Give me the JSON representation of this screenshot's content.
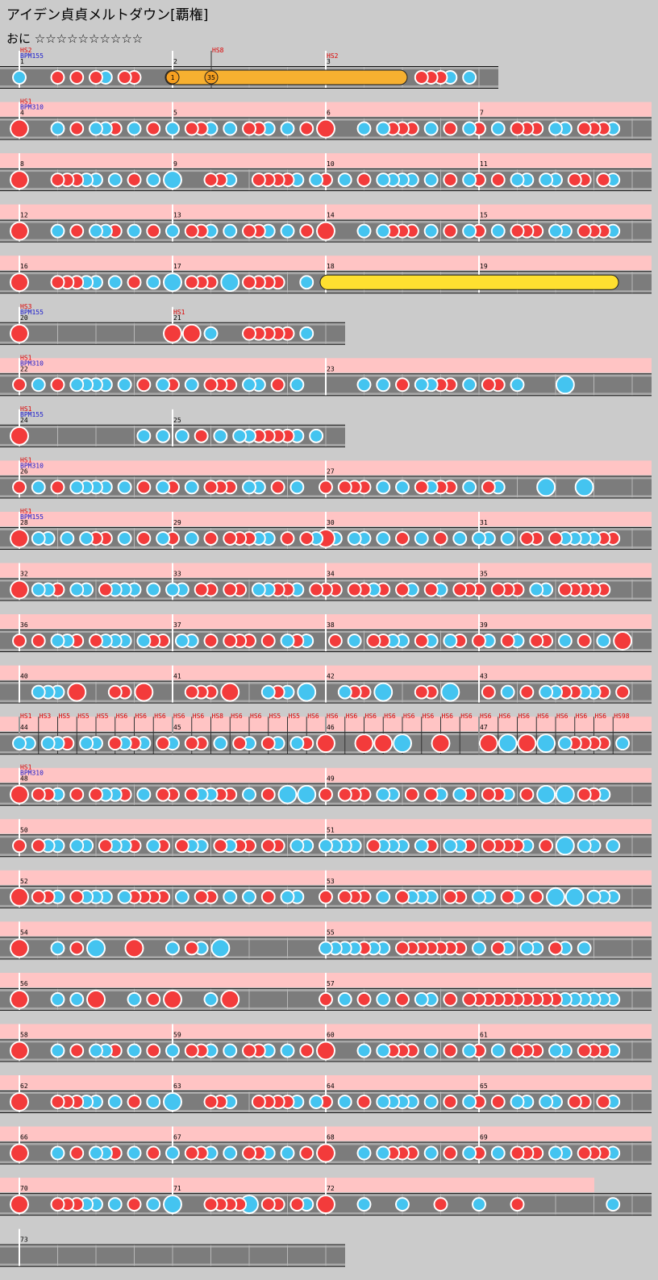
{
  "title": "アイデン貞貞メルトダウン[覇権]",
  "difficulty": "おに ☆☆☆☆☆☆☆☆☆☆",
  "rows": [
    {
      "measures": [
        {
          "number": "1",
          "scroll": "HS2",
          "bpm": "BPM155"
        },
        {
          "number": "2",
          "events": [
            "HS8"
          ],
          "balloons": [
            "1",
            "35"
          ]
        },
        {
          "number": "3",
          "scroll": "HS2"
        }
      ]
    },
    {
      "measures": [
        {
          "number": "4",
          "scroll": "HS1",
          "bpm": "BPM310"
        },
        {
          "number": "5"
        },
        {
          "number": "6"
        },
        {
          "number": "7"
        }
      ]
    },
    {
      "measures": [
        {
          "number": "8"
        },
        {
          "number": "9"
        },
        {
          "number": "10"
        },
        {
          "number": "11"
        }
      ]
    },
    {
      "measures": [
        {
          "number": "12"
        },
        {
          "number": "13"
        },
        {
          "number": "14"
        },
        {
          "number": "15"
        }
      ]
    },
    {
      "measures": [
        {
          "number": "16"
        },
        {
          "number": "17"
        },
        {
          "number": "18"
        },
        {
          "number": "19"
        }
      ]
    },
    {
      "measures": [
        {
          "number": "20",
          "scroll": "HS3",
          "bpm": "BPM155"
        },
        {
          "number": "21",
          "scroll": "HS1"
        }
      ]
    },
    {
      "measures": [
        {
          "number": "22",
          "scroll": "HS1",
          "bpm": "BPM310"
        },
        {
          "number": "23"
        }
      ]
    },
    {
      "measures": [
        {
          "number": "24",
          "scroll": "HS1",
          "bpm": "BPM155"
        },
        {
          "number": "25"
        }
      ]
    },
    {
      "measures": [
        {
          "number": "26",
          "scroll": "HS1",
          "bpm": "BPM310"
        },
        {
          "number": "27"
        }
      ]
    },
    {
      "measures": [
        {
          "number": "28",
          "scroll": "HS1",
          "bpm": "BPM155"
        },
        {
          "number": "29"
        },
        {
          "number": "30"
        },
        {
          "number": "31"
        }
      ]
    },
    {
      "measures": [
        {
          "number": "32"
        },
        {
          "number": "33"
        },
        {
          "number": "34"
        },
        {
          "number": "35"
        }
      ]
    },
    {
      "measures": [
        {
          "number": "36"
        },
        {
          "number": "37"
        },
        {
          "number": "38"
        },
        {
          "number": "39"
        }
      ]
    },
    {
      "measures": [
        {
          "number": "40"
        },
        {
          "number": "41"
        },
        {
          "number": "42"
        },
        {
          "number": "43"
        }
      ]
    },
    {
      "measures": [
        {
          "number": "44",
          "events": [
            "HS1",
            "HS3",
            "HS5",
            "HS5",
            "HS5",
            "HS6",
            "HS6",
            "HS6"
          ]
        },
        {
          "number": "45",
          "events": [
            "HS6",
            "HS6",
            "HS8",
            "HS6",
            "HS6",
            "HS5",
            "HS5",
            "HS6"
          ]
        },
        {
          "number": "46",
          "events": [
            "HS6",
            "HS6",
            "HS6",
            "HS6",
            "HS6",
            "HS6",
            "HS6",
            "HS6"
          ]
        },
        {
          "number": "47",
          "events": [
            "HS6",
            "HS6",
            "HS6",
            "HS6",
            "HS6",
            "HS6",
            "HS6",
            "HS98"
          ]
        }
      ]
    },
    {
      "measures": [
        {
          "number": "48",
          "scroll": "HS1",
          "bpm": "BPM310"
        },
        {
          "number": "49"
        }
      ]
    },
    {
      "measures": [
        {
          "number": "50"
        },
        {
          "number": "51"
        }
      ]
    },
    {
      "measures": [
        {
          "number": "52"
        },
        {
          "number": "53"
        }
      ]
    },
    {
      "measures": [
        {
          "number": "54"
        },
        {
          "number": "55"
        }
      ]
    },
    {
      "measures": [
        {
          "number": "56"
        },
        {
          "number": "57"
        }
      ]
    },
    {
      "measures": [
        {
          "number": "58"
        },
        {
          "number": "59"
        },
        {
          "number": "60"
        },
        {
          "number": "61"
        }
      ]
    },
    {
      "measures": [
        {
          "number": "62"
        },
        {
          "number": "63"
        },
        {
          "number": "64"
        },
        {
          "number": "65"
        }
      ]
    },
    {
      "measures": [
        {
          "number": "66"
        },
        {
          "number": "67"
        },
        {
          "number": "68"
        },
        {
          "number": "69"
        }
      ]
    },
    {
      "measures": [
        {
          "number": "70"
        },
        {
          "number": "71"
        },
        {
          "number": "72"
        }
      ]
    },
    {
      "measures": [
        {
          "number": "73"
        }
      ]
    }
  ]
}
